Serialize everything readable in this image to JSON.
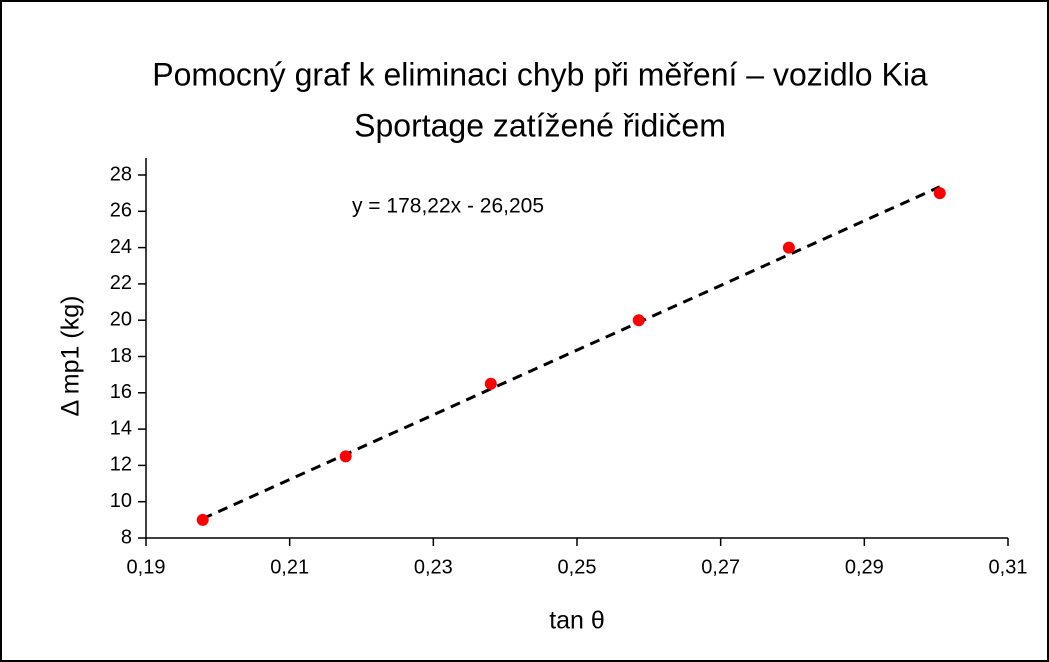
{
  "chart_data": {
    "type": "scatter",
    "title": [
      "Pomocný graf k eliminaci chyb při měření – vozidlo Kia",
      "Sportage zatížené řidičem"
    ],
    "xlabel": "tan θ",
    "ylabel": "Δ mp1 (kg)",
    "x": [
      0.1979,
      0.2178,
      0.238,
      0.2586,
      0.2795,
      0.3005
    ],
    "series": [
      {
        "name": "Δ mp1",
        "color": "#ff0000",
        "values": [
          9,
          12.5,
          16.5,
          20,
          24,
          27
        ]
      }
    ],
    "trendline": {
      "slope": 178.22,
      "intercept": -26.205,
      "label": "y = 178,22x - 26,205",
      "color": "#000000",
      "dashed": true
    },
    "xlim": [
      0.19,
      0.31
    ],
    "xticks": [
      {
        "value": 0.19,
        "label": "0,19"
      },
      {
        "value": 0.21,
        "label": "0,21"
      },
      {
        "value": 0.23,
        "label": "0,23"
      },
      {
        "value": 0.25,
        "label": "0,25"
      },
      {
        "value": 0.27,
        "label": "0,27"
      },
      {
        "value": 0.29,
        "label": "0,29"
      },
      {
        "value": 0.31,
        "label": "0,31"
      }
    ],
    "ylim": [
      8,
      28
    ],
    "yticks": [
      8,
      10,
      12,
      14,
      16,
      18,
      20,
      22,
      24,
      26,
      28
    ],
    "grid": false
  }
}
